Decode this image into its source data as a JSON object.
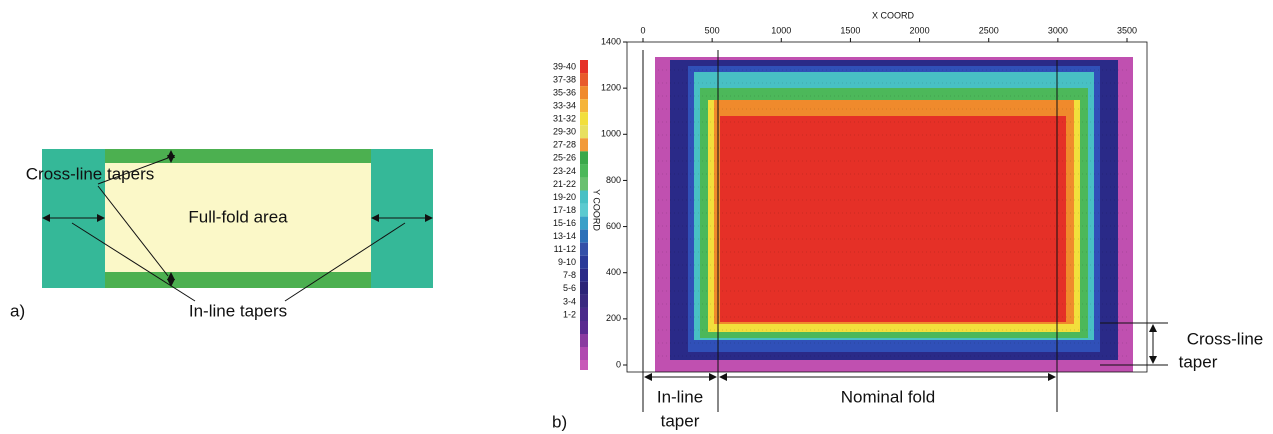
{
  "panel_a": {
    "label": "a)",
    "center_label": "Full-fold area",
    "cross_line_label": "Cross-line tapers",
    "in_line_label": "In-line tapers"
  },
  "panel_b": {
    "label": "b)",
    "x_axis_title": "X COORD",
    "y_axis_title": "Y COORD",
    "xticks": [
      0,
      500,
      1000,
      1500,
      2000,
      2500,
      3000,
      3500
    ],
    "yticks": [
      0,
      200,
      400,
      600,
      800,
      1000,
      1200,
      1400
    ],
    "legend": [
      {
        "label": "39-40",
        "color": "#e53027"
      },
      {
        "label": "37-38",
        "color": "#e85a2b"
      },
      {
        "label": "35-36",
        "color": "#f08a2c"
      },
      {
        "label": "33-34",
        "color": "#f5b43a"
      },
      {
        "label": "31-32",
        "color": "#f2df3c"
      },
      {
        "label": "29-30",
        "color": "#e8e060"
      },
      {
        "label": "27-28",
        "color": "#f29a3a"
      },
      {
        "label": "25-26",
        "color": "#3aa84a"
      },
      {
        "label": "23-24",
        "color": "#4cb85a"
      },
      {
        "label": "21-22",
        "color": "#6ac070"
      },
      {
        "label": "19-20",
        "color": "#48c0c4"
      },
      {
        "label": "17-18",
        "color": "#5ccad0"
      },
      {
        "label": "15-16",
        "color": "#3aa0c8"
      },
      {
        "label": "13-14",
        "color": "#2c70b8"
      },
      {
        "label": "11-12",
        "color": "#3450a8"
      },
      {
        "label": "9-10",
        "color": "#2a3a98"
      },
      {
        "label": "7-8",
        "color": "#2a2a88"
      },
      {
        "label": "5-6",
        "color": "#2c2478"
      },
      {
        "label": "3-4",
        "color": "#3a2a80"
      },
      {
        "label": "1-2",
        "color": "#4a2a8a"
      }
    ],
    "annotations": {
      "in_line_taper": [
        "In-line",
        "taper"
      ],
      "nominal_fold": "Nominal fold",
      "cross_line_taper": [
        "Cross-line",
        "taper"
      ]
    }
  }
}
